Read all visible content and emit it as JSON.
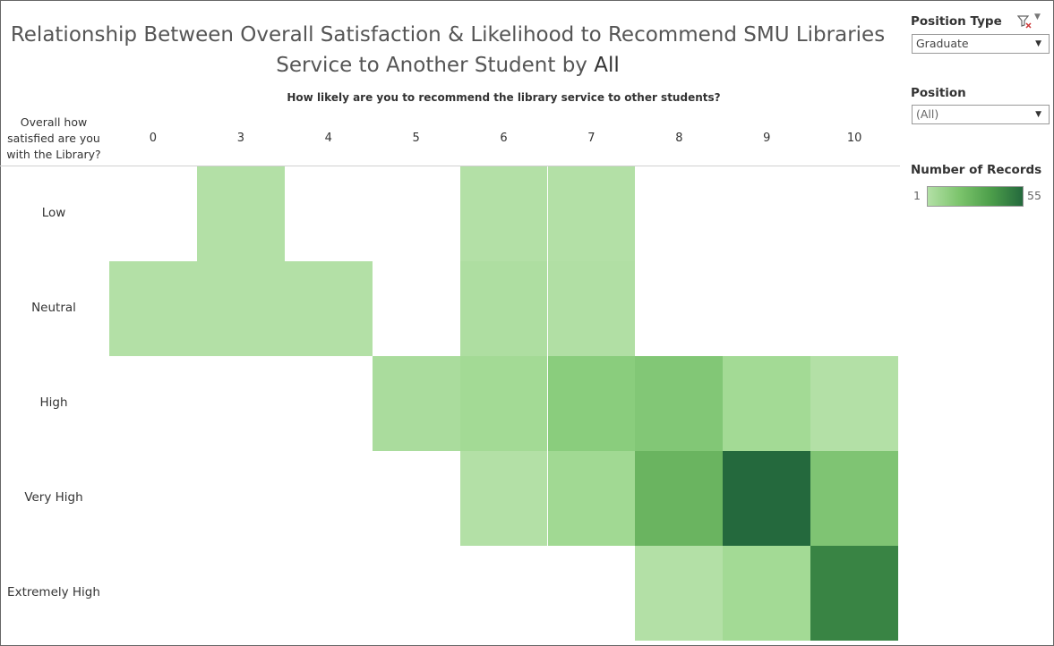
{
  "title_line1": "Relationship Between Overall Satisfaction & Likelihood to Recommend SMU Libraries",
  "title_line2_prefix": "Service to Another Student by",
  "title_line2_highlight": "All",
  "filters": {
    "position_type": {
      "label": "Position Type",
      "value": "Graduate"
    },
    "position": {
      "label": "Position",
      "value": "(All)"
    }
  },
  "legend": {
    "title": "Number of Records",
    "min": "1",
    "max": "55",
    "color_low": "#b3e0a6",
    "color_high": "#24693d"
  },
  "chart_data": {
    "type": "heatmap",
    "xlabel": "How likely are you to recommend the library service to other students?",
    "ylabel": "Overall how satisfied are you with the Library?",
    "x_categories": [
      "0",
      "3",
      "4",
      "5",
      "6",
      "7",
      "8",
      "9",
      "10"
    ],
    "y_categories": [
      "Low",
      "Neutral",
      "High",
      "Very High",
      "Extremely High"
    ],
    "color_range": [
      1,
      55
    ],
    "cells": [
      {
        "y": "Low",
        "x": "3",
        "value": 1
      },
      {
        "y": "Low",
        "x": "6",
        "value": 1
      },
      {
        "y": "Low",
        "x": "7",
        "value": 1
      },
      {
        "y": "Neutral",
        "x": "0",
        "value": 1
      },
      {
        "y": "Neutral",
        "x": "3",
        "value": 1
      },
      {
        "y": "Neutral",
        "x": "4",
        "value": 1
      },
      {
        "y": "Neutral",
        "x": "6",
        "value": 3
      },
      {
        "y": "Neutral",
        "x": "7",
        "value": 2
      },
      {
        "y": "High",
        "x": "5",
        "value": 5
      },
      {
        "y": "High",
        "x": "6",
        "value": 8
      },
      {
        "y": "High",
        "x": "7",
        "value": 18
      },
      {
        "y": "High",
        "x": "8",
        "value": 21
      },
      {
        "y": "High",
        "x": "9",
        "value": 8
      },
      {
        "y": "High",
        "x": "10",
        "value": 1
      },
      {
        "y": "Very High",
        "x": "6",
        "value": 1
      },
      {
        "y": "Very High",
        "x": "7",
        "value": 9
      },
      {
        "y": "Very High",
        "x": "8",
        "value": 30
      },
      {
        "y": "Very High",
        "x": "9",
        "value": 55
      },
      {
        "y": "Very High",
        "x": "10",
        "value": 22
      },
      {
        "y": "Extremely High",
        "x": "8",
        "value": 1
      },
      {
        "y": "Extremely High",
        "x": "9",
        "value": 8
      },
      {
        "y": "Extremely High",
        "x": "10",
        "value": 48
      }
    ]
  }
}
